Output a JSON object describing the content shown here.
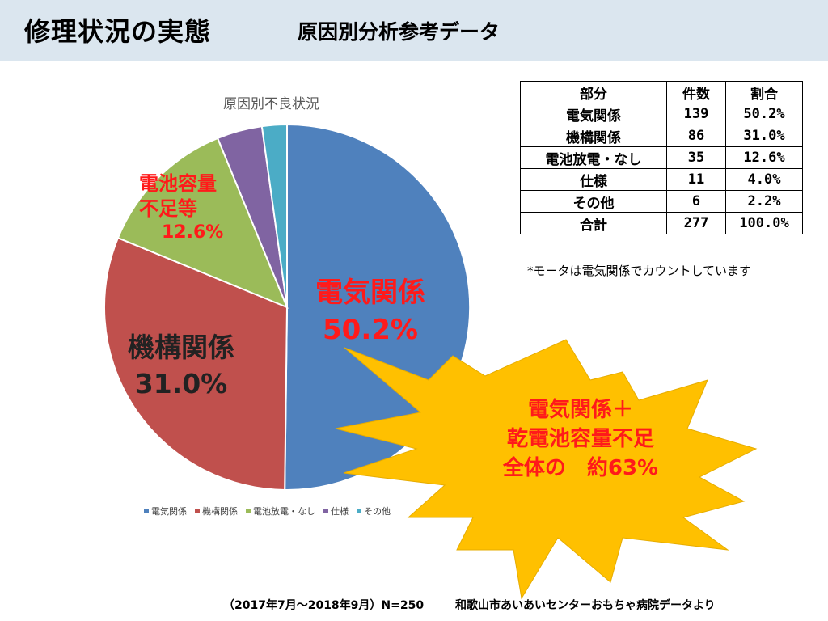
{
  "header": {
    "title": "修理状況の実態",
    "subtitle": "原因別分析参考データ"
  },
  "colors": {
    "header_bg": "#dbe6ef",
    "denki": "#4f81bd",
    "kiko": "#c0504d",
    "battery": "#9bbb59",
    "shiyo": "#8064a2",
    "other": "#4bacc6",
    "burst": "#ffc000",
    "highlight_text": "#ff1a1a"
  },
  "chart_data": {
    "type": "pie",
    "title": "原因別不良状況",
    "categories": [
      "電気関係",
      "機構関係",
      "電池放電・なし",
      "仕様",
      "その他"
    ],
    "values": [
      50.2,
      31.0,
      12.6,
      4.0,
      2.2
    ],
    "legend_position": "bottom"
  },
  "labels": {
    "denki_name": "電気関係",
    "denki_pct": "50.2%",
    "kiko_name": "機構関係",
    "kiko_pct": "31.0%",
    "battery_line1": "電池容量",
    "battery_line2": "不足等",
    "battery_pct": "12.6%"
  },
  "table": {
    "headers": [
      "部分",
      "件数",
      "割合"
    ],
    "rows": [
      [
        "電気関係",
        "139",
        "50.2%"
      ],
      [
        "機構関係",
        "86",
        "31.0%"
      ],
      [
        "電池放電・なし",
        "35",
        "12.6%"
      ],
      [
        "仕様",
        "11",
        "4.0%"
      ],
      [
        "その他",
        "6",
        "2.2%"
      ],
      [
        "合計",
        "277",
        "100.0%"
      ]
    ]
  },
  "note": "*モータは電気関係でカウントしています",
  "burst": {
    "line1": "電気関係＋",
    "line2": "乾電池容量不足",
    "line3": "全体の　約63%"
  },
  "footer": {
    "period": "（2017年7月～2018年9月）N=250",
    "source": "和歌山市あいあいセンターおもちゃ病院データより"
  }
}
